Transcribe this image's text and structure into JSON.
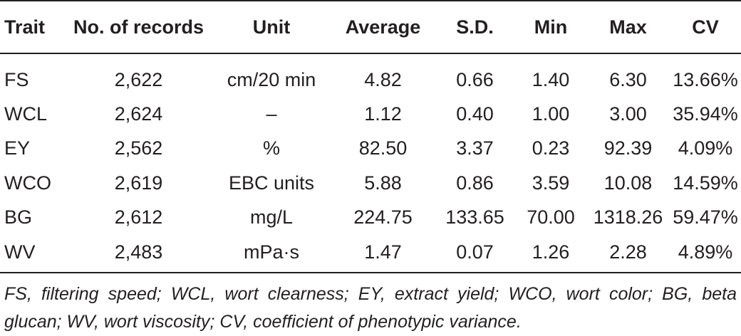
{
  "table": {
    "headers": {
      "trait": "Trait",
      "records": "No. of records",
      "unit": "Unit",
      "average": "Average",
      "sd": "S.D.",
      "min": "Min",
      "max": "Max",
      "cv": "CV"
    },
    "rows": [
      {
        "trait": "FS",
        "records": "2,622",
        "unit": "cm/20 min",
        "average": "4.82",
        "sd": "0.66",
        "min": "1.40",
        "max": "6.30",
        "cv": "13.66%"
      },
      {
        "trait": "WCL",
        "records": "2,624",
        "unit": "–",
        "average": "1.12",
        "sd": "0.40",
        "min": "1.00",
        "max": "3.00",
        "cv": "35.94%"
      },
      {
        "trait": "EY",
        "records": "2,562",
        "unit": "%",
        "average": "82.50",
        "sd": "3.37",
        "min": "0.23",
        "max": "92.39",
        "cv": "4.09%"
      },
      {
        "trait": "WCO",
        "records": "2,619",
        "unit": "EBC units",
        "average": "5.88",
        "sd": "0.86",
        "min": "3.59",
        "max": "10.08",
        "cv": "14.59%"
      },
      {
        "trait": "BG",
        "records": "2,612",
        "unit": "mg/L",
        "average": "224.75",
        "sd": "133.65",
        "min": "70.00",
        "max": "1318.26",
        "cv": "59.47%"
      },
      {
        "trait": "WV",
        "records": "2,483",
        "unit": "mPa·s",
        "average": "1.47",
        "sd": "0.07",
        "min": "1.26",
        "max": "2.28",
        "cv": "4.89%"
      }
    ]
  },
  "footnote": "FS, filtering speed; WCL, wort clearness; EY, extract yield; WCO, wort color; BG, beta glucan; WV, wort viscosity; CV, coefficient of phenotypic variance."
}
